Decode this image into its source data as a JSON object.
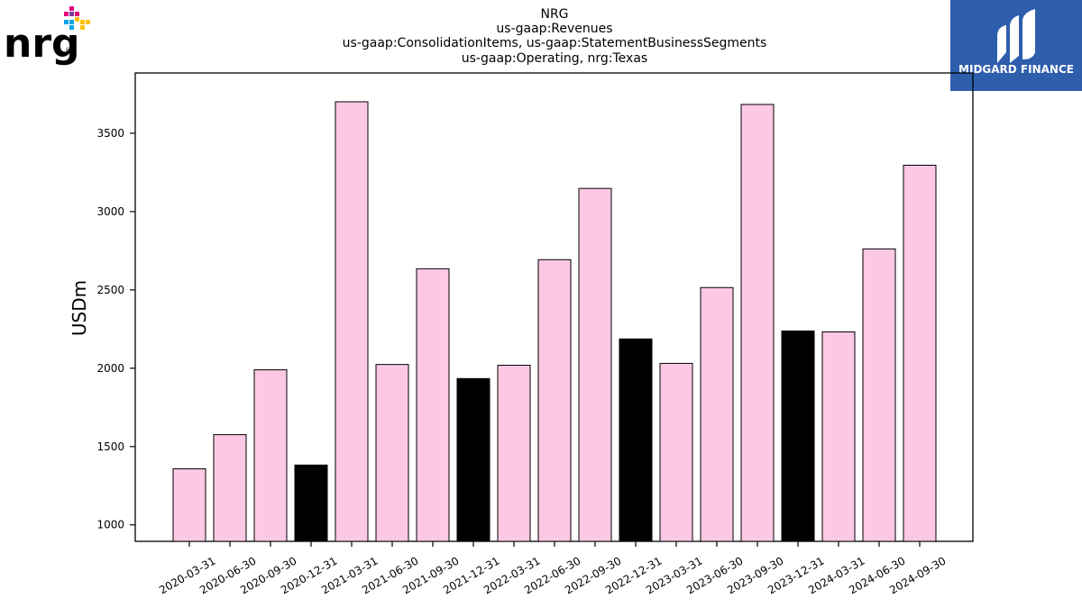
{
  "logos": {
    "left_text": "nrg",
    "left_registered": "®",
    "right_text": "MIDGARD FINANCE",
    "right_bg_color": "#2f5ead"
  },
  "colors": {
    "normal_bar": "#fcc8e4",
    "q4_bar": "#000000",
    "bar_edge": "#000000"
  },
  "chart_data": {
    "type": "bar",
    "title_lines": [
      "NRG",
      "us-gaap:Revenues",
      "us-gaap:ConsolidationItems, us-gaap:StatementBusinessSegments",
      "us-gaap:Operating, nrg:Texas"
    ],
    "xlabel": "",
    "ylabel": "USDm",
    "ylim": [
      895,
      3885
    ],
    "yticks": [
      1000,
      1500,
      2000,
      2500,
      3000,
      3500
    ],
    "grid": false,
    "legend": "none",
    "categories": [
      "2020-03-31",
      "2020-06-30",
      "2020-09-30",
      "2020-12-31",
      "2021-03-31",
      "2021-06-30",
      "2021-09-30",
      "2021-12-31",
      "2022-03-31",
      "2022-06-30",
      "2022-09-30",
      "2022-12-31",
      "2023-03-31",
      "2023-06-30",
      "2023-09-30",
      "2023-12-31",
      "2024-03-31",
      "2024-06-30",
      "2024-09-30"
    ],
    "values": [
      1358,
      1576,
      1990,
      1382,
      3701,
      2024,
      2635,
      1934,
      2019,
      2693,
      3148,
      2187,
      2031,
      2515,
      3684,
      2238,
      2232,
      2762,
      3296
    ],
    "highlight": [
      false,
      false,
      false,
      true,
      false,
      false,
      false,
      true,
      false,
      false,
      false,
      true,
      false,
      false,
      false,
      true,
      false,
      false,
      false
    ]
  }
}
